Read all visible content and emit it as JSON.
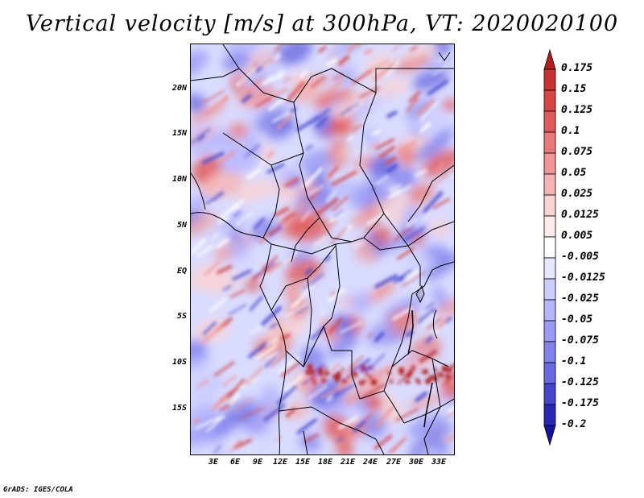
{
  "title": "Vertical velocity [m/s] at 300hPa, VT: 2020020100",
  "credit": "GrADS: IGES/COLA",
  "map": {
    "variable": "vertical velocity",
    "level": "300hPa",
    "lat_labels": [
      "20N",
      "15N",
      "10N",
      "5N",
      "EQ",
      "5S",
      "10S",
      "15S"
    ],
    "lon_labels": [
      "3E",
      "6E",
      "9E",
      "12E",
      "15E",
      "18E",
      "21E",
      "24E",
      "27E",
      "30E",
      "33E"
    ]
  },
  "colorbar": {
    "levels": [
      "0.175",
      "0.15",
      "0.125",
      "0.1",
      "0.075",
      "0.05",
      "0.025",
      "0.0125",
      "0.005",
      "-0.005",
      "-0.0125",
      "-0.025",
      "-0.05",
      "-0.075",
      "-0.1",
      "-0.125",
      "-0.175",
      "-0.2"
    ],
    "colors": [
      "#b41e1e",
      "#c83232",
      "#d74646",
      "#e15a5a",
      "#ea7a7a",
      "#f09696",
      "#f5b4b4",
      "#fad2d2",
      "#fdeaea",
      "#ffffff",
      "#e6e6ff",
      "#cdcdff",
      "#b4b4ff",
      "#9b9bf5",
      "#8282eb",
      "#6969e1",
      "#4646cd",
      "#2828b4",
      "#1414a0"
    ]
  }
}
